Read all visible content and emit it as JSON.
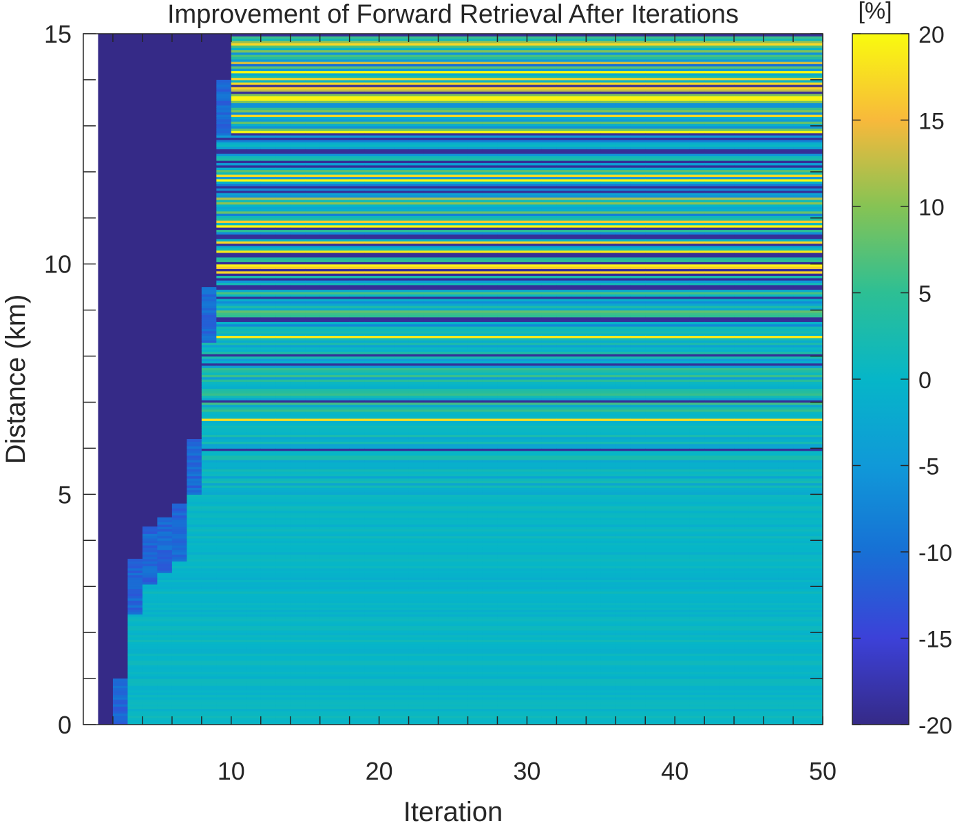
{
  "chart_data": {
    "type": "heatmap",
    "title": "Improvement of Forward Retrieval After Iterations",
    "xlabel": "Iteration",
    "ylabel": "Distance (km)",
    "xlim": [
      0,
      50
    ],
    "ylim": [
      0,
      15
    ],
    "x_ticks": [
      "10",
      "20",
      "30",
      "40",
      "50"
    ],
    "y_ticks": [
      "0",
      "5",
      "10",
      "15"
    ],
    "x_range": [
      1,
      50
    ],
    "y_range": [
      0,
      15
    ],
    "colorbar": {
      "label": "[%]",
      "limits": [
        -20,
        20
      ],
      "ticks": [
        "-20",
        "-15",
        "-10",
        "-5",
        "0",
        "5",
        "10",
        "15",
        "20"
      ],
      "colormap": "parula"
    },
    "convergence_front": [
      {
        "iteration": 1,
        "distance": 0.0
      },
      {
        "iteration": 2,
        "distance": 1.0
      },
      {
        "iteration": 3,
        "distance": 3.6
      },
      {
        "iteration": 4,
        "distance": 4.3
      },
      {
        "iteration": 5,
        "distance": 4.5
      },
      {
        "iteration": 6,
        "distance": 4.8
      },
      {
        "iteration": 7,
        "distance": 6.2
      },
      {
        "iteration": 8,
        "distance": 9.5
      },
      {
        "iteration": 9,
        "distance": 14.0
      },
      {
        "iteration": 10,
        "distance": 15.0
      }
    ],
    "value_summary": {
      "before_convergence": -20,
      "near_range_0_to_5km": 0,
      "far_range_5_to_15km": "alternating between -20 and 20"
    }
  }
}
